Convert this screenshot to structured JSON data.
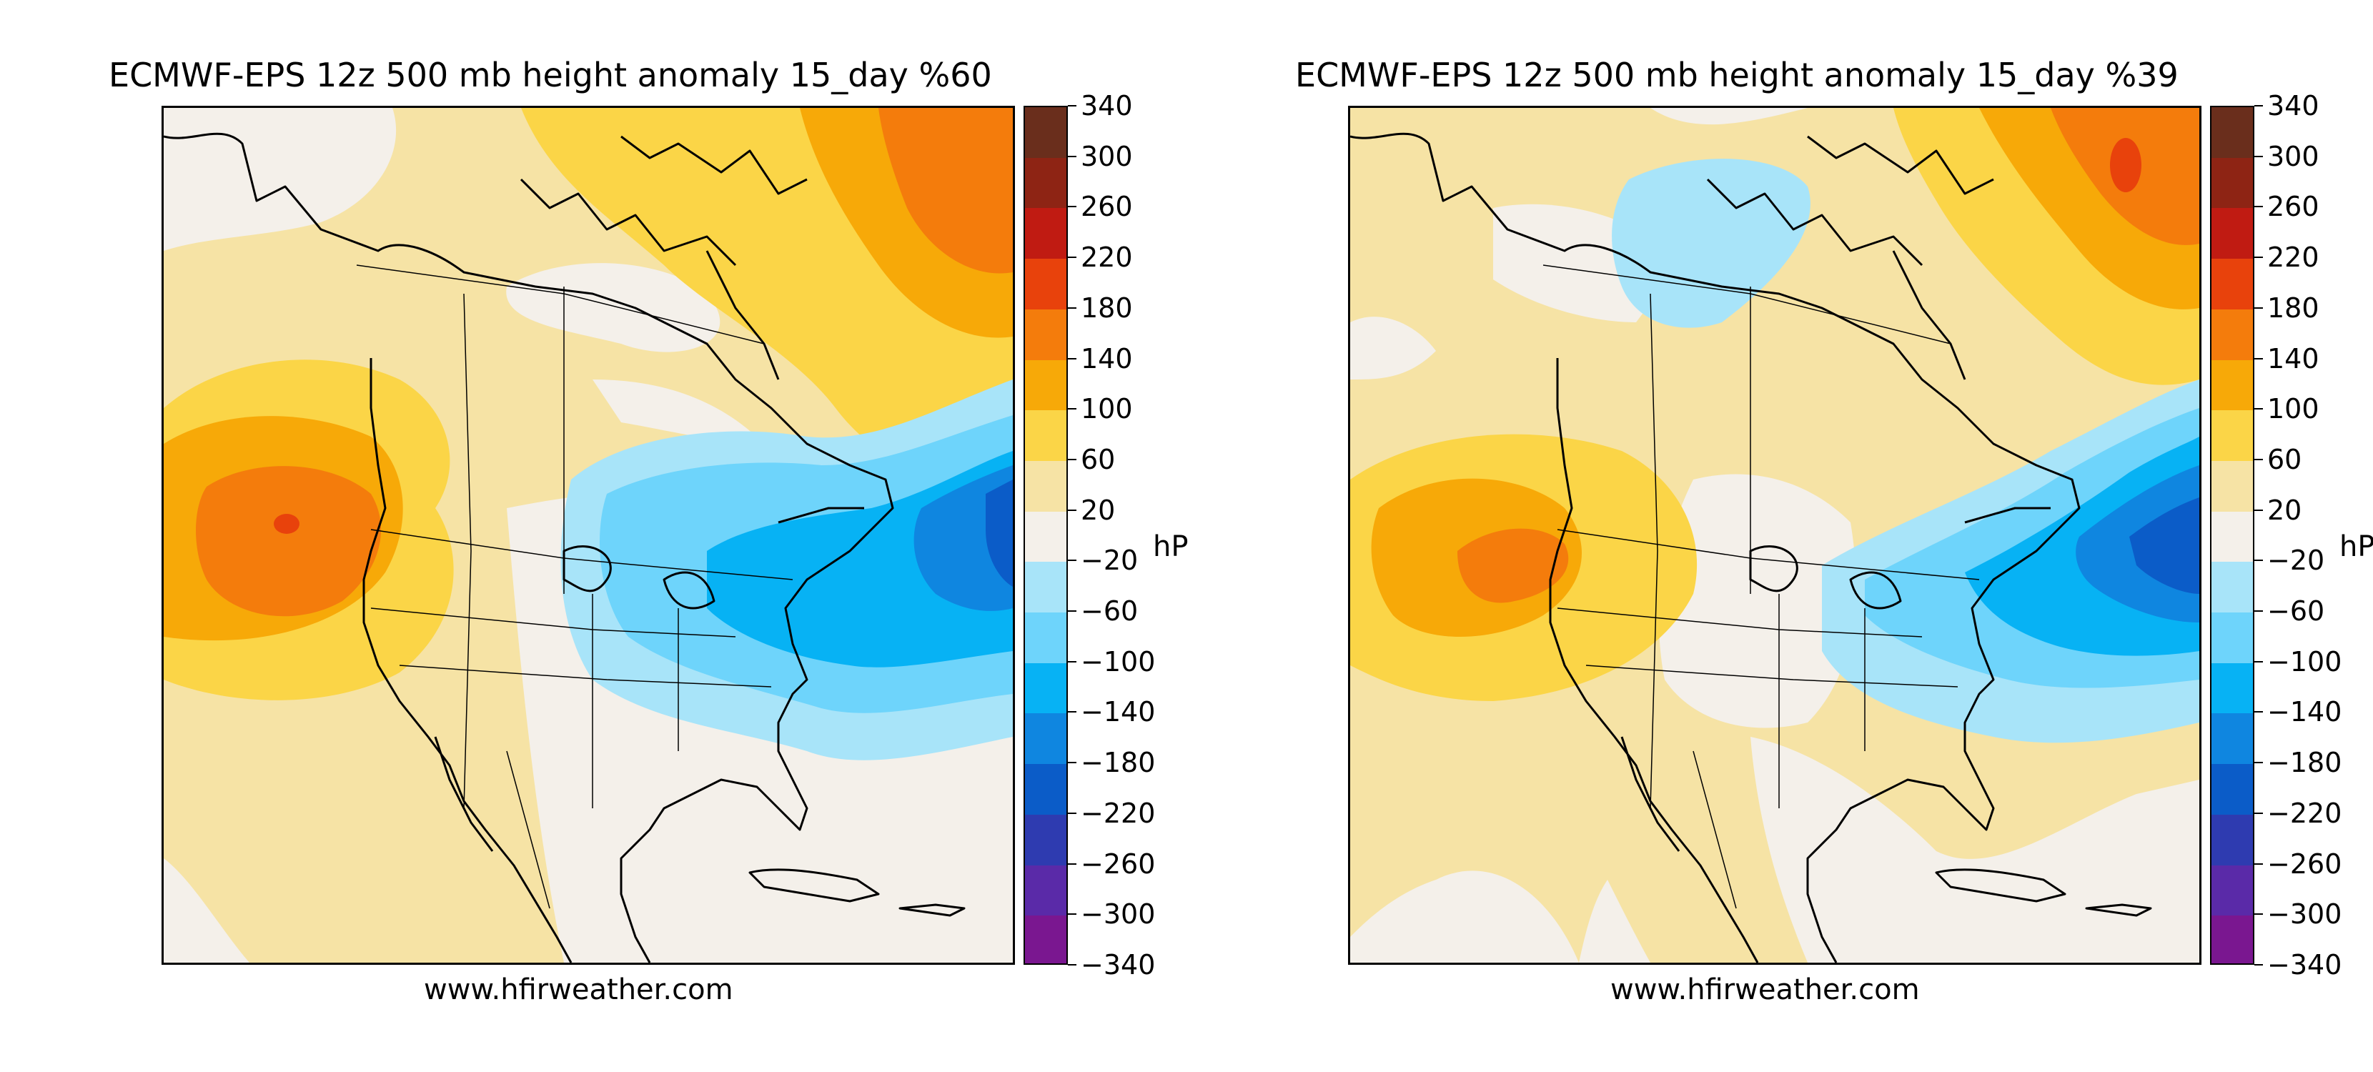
{
  "panels": [
    {
      "title": "ECMWF-EPS 12z 500 mb height anomaly 15_day %60",
      "footer": "www.hfirweather.com"
    },
    {
      "title": "ECMWF-EPS 12z 500 mb height anomaly 15_day %39",
      "footer": "www.hfirweather.com"
    }
  ],
  "colorbar": {
    "unit": "hP",
    "ticks": [
      "340",
      "300",
      "260",
      "220",
      "180",
      "140",
      "100",
      "60",
      "20",
      "−20",
      "−60",
      "−100",
      "−140",
      "−180",
      "−220",
      "−260",
      "−300",
      "−340"
    ],
    "colors": [
      "#6a2e1c",
      "#8e2414",
      "#c01b12",
      "#e8420c",
      "#f47c0c",
      "#f7a908",
      "#fbd547",
      "#f6e3a5",
      "#f4f0ea",
      "#a8e4f9",
      "#6ed4fb",
      "#07b2f4",
      "#0f86e0",
      "#0b5cc8",
      "#2e3bb0",
      "#5a2aa8",
      "#7a1790"
    ]
  },
  "legend_layers": {
    "land_outline": "coastlines and state/province boundaries",
    "positive_anomaly": "orange-red shading",
    "negative_anomaly": "blue shading"
  }
}
